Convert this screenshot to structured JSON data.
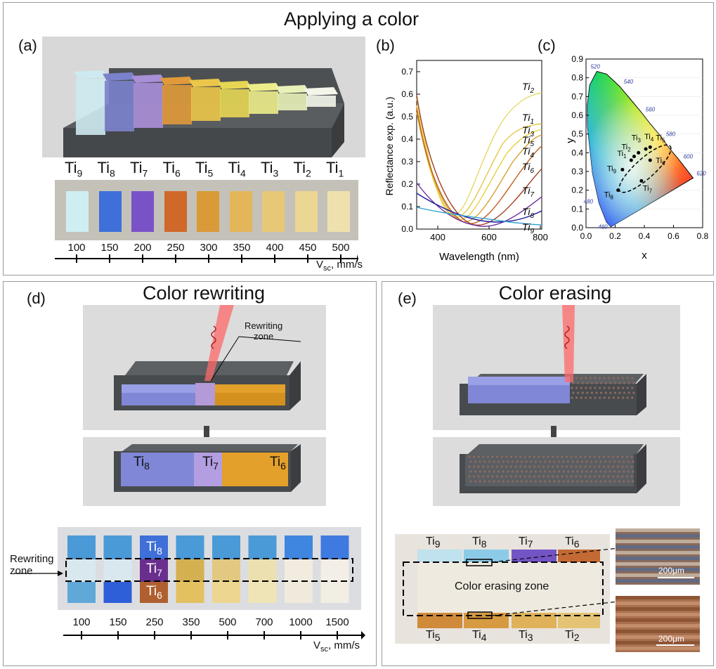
{
  "top": {
    "title": "Applying a color",
    "panel_a": {
      "label": "(a)",
      "samples": [
        {
          "base": "Ti",
          "sub": "9",
          "color": "#cfeef1"
        },
        {
          "base": "Ti",
          "sub": "8",
          "color": "#3f6fd8"
        },
        {
          "base": "Ti",
          "sub": "7",
          "color": "#7a52c8"
        },
        {
          "base": "Ti",
          "sub": "6",
          "color": "#d0682a"
        },
        {
          "base": "Ti",
          "sub": "5",
          "color": "#d99a38"
        },
        {
          "base": "Ti",
          "sub": "4",
          "color": "#e3b65a"
        },
        {
          "base": "Ti",
          "sub": "3",
          "color": "#e7c877"
        },
        {
          "base": "Ti",
          "sub": "2",
          "color": "#ecd693"
        },
        {
          "base": "Ti",
          "sub": "1",
          "color": "#efe1ad"
        }
      ],
      "block_colors": [
        "#cdeaf0",
        "#7a82cc",
        "#a98ed8",
        "#e09a3a",
        "#ecc64a",
        "#e6d654",
        "#ecec8a",
        "#e8f1b8",
        "#f4f6ea"
      ],
      "speeds": [
        "100",
        "150",
        "200",
        "250",
        "300",
        "350",
        "400",
        "450",
        "500"
      ],
      "axis_base": "V",
      "axis_sub": "sc",
      "axis_unit": ", mm/s"
    },
    "panel_b": {
      "label": "(b)",
      "ylabel": "Reflectance exp. (a.u.)",
      "xlabel": "Wavelength (nm)",
      "yticks": [
        "0.0",
        "0.1",
        "0.2",
        "0.3",
        "0.4",
        "0.5",
        "0.6",
        "0.7"
      ],
      "xticks": [
        "400",
        "600",
        "800"
      ],
      "curve_labels": [
        {
          "base": "Ti",
          "sub": "2"
        },
        {
          "base": "Ti",
          "sub": "1"
        },
        {
          "base": "Ti",
          "sub": "3"
        },
        {
          "base": "Ti",
          "sub": "5"
        },
        {
          "base": "Ti",
          "sub": "4"
        },
        {
          "base": "Ti",
          "sub": "6"
        },
        {
          "base": "Ti",
          "sub": "7"
        },
        {
          "base": "Ti",
          "sub": "8"
        },
        {
          "base": "Ti",
          "sub": "9"
        }
      ]
    },
    "panel_c": {
      "label": "(c)",
      "ylabel": "y",
      "xlabel": "x",
      "yticks": [
        "0.0",
        "0.1",
        "0.2",
        "0.3",
        "0.4",
        "0.5",
        "0.6",
        "0.7",
        "0.8",
        "0.9"
      ],
      "xticks": [
        "0.0",
        "0.2",
        "0.4",
        "0.6",
        "0.8"
      ],
      "wavelength_marks": [
        "520",
        "540",
        "560",
        "580",
        "600",
        "620",
        "480",
        "460"
      ],
      "points": [
        {
          "base": "Ti",
          "sub": "1"
        },
        {
          "base": "Ti",
          "sub": "2"
        },
        {
          "base": "Ti",
          "sub": "3"
        },
        {
          "base": "Ti",
          "sub": "4"
        },
        {
          "base": "Ti",
          "sub": "5"
        },
        {
          "base": "Ti",
          "sub": "6"
        },
        {
          "base": "Ti",
          "sub": "7"
        },
        {
          "base": "Ti",
          "sub": "8"
        },
        {
          "base": "Ti",
          "sub": "9"
        }
      ]
    }
  },
  "panel_d": {
    "label": "(d)",
    "title": "Color rewriting",
    "zone_label_top": "Rewriting",
    "zone_label_bottom": "zone",
    "block_labels": [
      {
        "base": "Ti",
        "sub": "8"
      },
      {
        "base": "Ti",
        "sub": "7"
      },
      {
        "base": "Ti",
        "sub": "6"
      }
    ],
    "swatch_labels": [
      {
        "base": "Ti",
        "sub": "8"
      },
      {
        "base": "Ti",
        "sub": "7"
      },
      {
        "base": "Ti",
        "sub": "6"
      }
    ],
    "side_label_top": "Rewriting",
    "side_label_bottom": "zone",
    "speeds": [
      "100",
      "150",
      "250",
      "350",
      "500",
      "700",
      "1000",
      "1500"
    ],
    "axis_base": "V",
    "axis_sub": "sc",
    "axis_unit": ", mm/s"
  },
  "panel_e": {
    "label": "(e)",
    "title": "Color erasing",
    "top_labels": [
      {
        "base": "Ti",
        "sub": "9"
      },
      {
        "base": "Ti",
        "sub": "8"
      },
      {
        "base": "Ti",
        "sub": "7"
      },
      {
        "base": "Ti",
        "sub": "6"
      }
    ],
    "bottom_labels": [
      {
        "base": "Ti",
        "sub": "5"
      },
      {
        "base": "Ti",
        "sub": "4"
      },
      {
        "base": "Ti",
        "sub": "3"
      },
      {
        "base": "Ti",
        "sub": "2"
      }
    ],
    "zone_label": "Color erasing zone",
    "scale_label_1": "200μm",
    "scale_label_2": "200μm"
  }
}
